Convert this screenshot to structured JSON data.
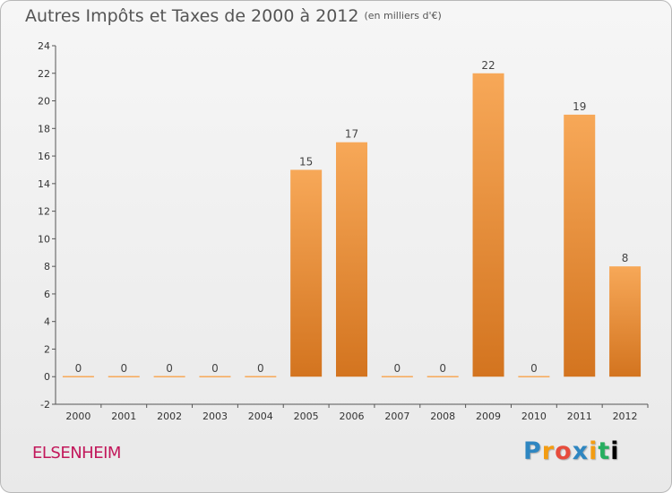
{
  "header": {
    "title": "Autres Impôts et Taxes de 2000 à 2012",
    "unit": "(en milliers d'€)"
  },
  "footer": {
    "commune": "ELSENHEIM",
    "logo_letters": [
      "P",
      "r",
      "o",
      "x",
      "i",
      "t",
      "i"
    ]
  },
  "colors": {
    "bar_light": "#f7a858",
    "bar_dark": "#d3741f",
    "axis": "#555555",
    "title": "#555555",
    "commune": "#c2185b"
  },
  "chart_data": {
    "type": "bar",
    "title": "Autres Impôts et Taxes de 2000 à 2012",
    "subtitle": "(en milliers d'€)",
    "categories": [
      "2000",
      "2001",
      "2002",
      "2003",
      "2004",
      "2005",
      "2006",
      "2007",
      "2008",
      "2009",
      "2010",
      "2011",
      "2012"
    ],
    "values": [
      0,
      0,
      0,
      0,
      0,
      15,
      17,
      0,
      0,
      22,
      0,
      19,
      8
    ],
    "ylim": [
      -2,
      24
    ],
    "yticks": [
      -2,
      0,
      2,
      4,
      6,
      8,
      10,
      12,
      14,
      16,
      18,
      20,
      22,
      24
    ],
    "grid": false,
    "data_labels": true
  }
}
